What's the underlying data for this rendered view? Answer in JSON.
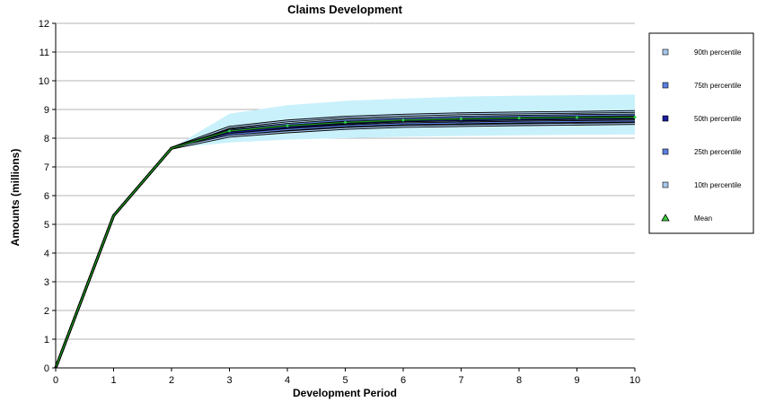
{
  "chart_data": {
    "type": "line",
    "title": "Claims Development",
    "xlabel": "Development Period",
    "ylabel": "Amounts (millions)",
    "xlim": [
      0,
      10
    ],
    "ylim": [
      0,
      12
    ],
    "x_ticks": [
      "0",
      "1",
      "2",
      "3",
      "4",
      "5",
      "6",
      "7",
      "8",
      "9",
      "10"
    ],
    "y_ticks": [
      "0",
      "1",
      "2",
      "3",
      "4",
      "5",
      "6",
      "7",
      "8",
      "9",
      "10",
      "11",
      "12"
    ],
    "grid": "horizontal",
    "legend_position": "right",
    "x": [
      0,
      1,
      2,
      3,
      4,
      5,
      6,
      7,
      8,
      9,
      10
    ],
    "band": {
      "upper": [
        0,
        5.3,
        7.65,
        8.85,
        9.15,
        9.3,
        9.38,
        9.45,
        9.48,
        9.5,
        9.52
      ],
      "lower": [
        0,
        5.3,
        7.65,
        7.85,
        7.95,
        8.0,
        8.05,
        8.08,
        8.1,
        8.12,
        8.13
      ],
      "color": "#c9f1fb"
    },
    "series": [
      {
        "name": "90th percentile",
        "color": "#a7c7ec",
        "marker": "square",
        "values": [
          0,
          5.3,
          7.65,
          8.38,
          8.6,
          8.73,
          8.8,
          8.85,
          8.88,
          8.9,
          8.93
        ]
      },
      {
        "name": "75th percentile",
        "color": "#5b7fe0",
        "marker": "square",
        "values": [
          0,
          5.3,
          7.65,
          8.28,
          8.48,
          8.62,
          8.68,
          8.73,
          8.76,
          8.79,
          8.81
        ]
      },
      {
        "name": "50th percentile",
        "color": "#1a1a9c",
        "marker": "square",
        "values": [
          0,
          5.3,
          7.65,
          8.2,
          8.38,
          8.52,
          8.6,
          8.63,
          8.66,
          8.68,
          8.7
        ]
      },
      {
        "name": "25th percentile",
        "color": "#5b7fe0",
        "marker": "square",
        "values": [
          0,
          5.3,
          7.65,
          8.13,
          8.3,
          8.43,
          8.5,
          8.53,
          8.56,
          8.58,
          8.6
        ]
      },
      {
        "name": "10th percentile",
        "color": "#a7c7ec",
        "marker": "square",
        "values": [
          0,
          5.3,
          7.65,
          8.07,
          8.22,
          8.34,
          8.41,
          8.44,
          8.47,
          8.49,
          8.51
        ]
      },
      {
        "name": "Mean",
        "color": "#1f9b1f",
        "marker": "triangle",
        "values": [
          0,
          5.3,
          7.65,
          8.25,
          8.43,
          8.55,
          8.63,
          8.67,
          8.7,
          8.72,
          8.73
        ]
      }
    ]
  }
}
